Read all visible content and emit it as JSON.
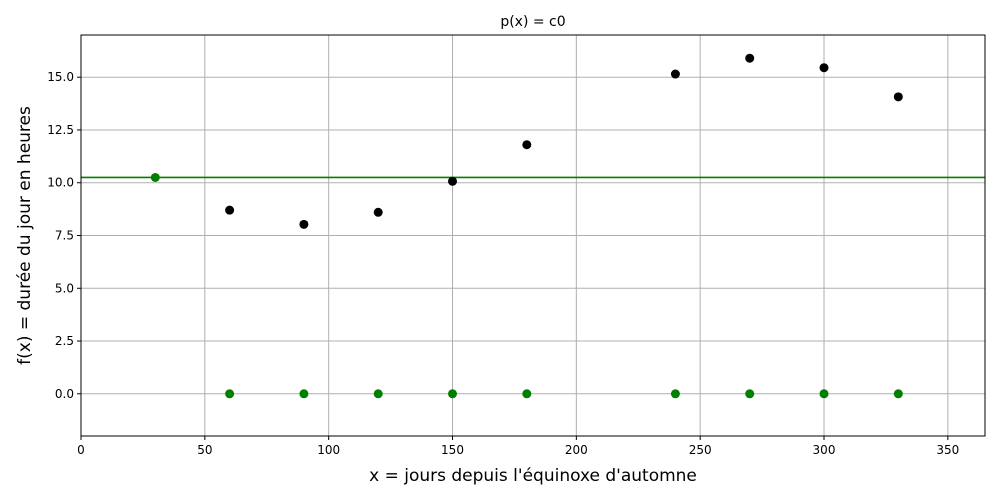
{
  "chart_data": {
    "type": "scatter",
    "title": "p(x) = c0",
    "xlabel": "x = jours depuis l'équinoxe d'automne",
    "ylabel": "f(x) = durée du jour en heures",
    "xlim": [
      0,
      365
    ],
    "ylim": [
      -2,
      17
    ],
    "xticks": [
      0,
      50,
      100,
      150,
      200,
      250,
      300,
      350
    ],
    "yticks": [
      0.0,
      2.5,
      5.0,
      7.5,
      10.0,
      12.5,
      15.0
    ],
    "ytick_labels": [
      "0.0",
      "2.5",
      "5.0",
      "7.5",
      "10.0",
      "12.5",
      "15.0"
    ],
    "grid": true,
    "series": [
      {
        "kind": "scatter",
        "color": "#000000",
        "x": [
          60,
          90,
          120,
          150,
          180,
          240,
          270,
          300,
          330
        ],
        "y": [
          8.7,
          8.03,
          8.6,
          10.07,
          11.8,
          15.15,
          15.9,
          15.45,
          14.07
        ]
      },
      {
        "kind": "scatter",
        "color": "#008000",
        "x": [
          30,
          60,
          90,
          120,
          150,
          180,
          240,
          270,
          300,
          330
        ],
        "y": [
          10.25,
          0,
          0,
          0,
          0,
          0,
          0,
          0,
          0,
          0
        ]
      },
      {
        "kind": "hline",
        "color": "#008000",
        "y": 10.25
      }
    ]
  }
}
